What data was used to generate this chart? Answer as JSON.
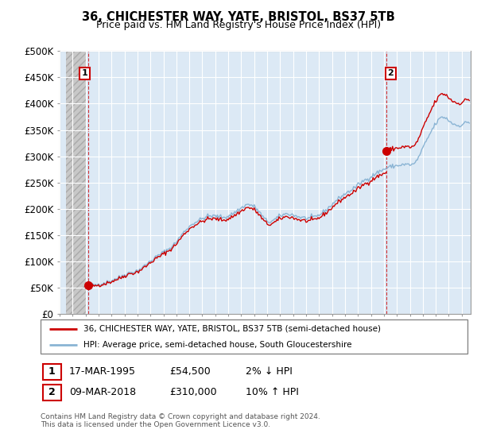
{
  "title": "36, CHICHESTER WAY, YATE, BRISTOL, BS37 5TB",
  "subtitle": "Price paid vs. HM Land Registry's House Price Index (HPI)",
  "ylim": [
    0,
    500000
  ],
  "yticks": [
    0,
    50000,
    100000,
    150000,
    200000,
    250000,
    300000,
    350000,
    400000,
    450000,
    500000
  ],
  "ytick_labels": [
    "£0",
    "£50K",
    "£100K",
    "£150K",
    "£200K",
    "£250K",
    "£300K",
    "£350K",
    "£400K",
    "£450K",
    "£500K"
  ],
  "hpi_color": "#8ab4d4",
  "price_color": "#cc0000",
  "sale1_x": 1995.21,
  "sale1_y": 54500,
  "sale2_x": 2018.21,
  "sale2_y": 310000,
  "legend_line1": "36, CHICHESTER WAY, YATE, BRISTOL, BS37 5TB (semi-detached house)",
  "legend_line2": "HPI: Average price, semi-detached house, South Gloucestershire",
  "table_row1": [
    "1",
    "17-MAR-1995",
    "£54,500",
    "2% ↓ HPI"
  ],
  "table_row2": [
    "2",
    "09-MAR-2018",
    "£310,000",
    "10% ↑ HPI"
  ],
  "footnote": "Contains HM Land Registry data © Crown copyright and database right 2024.\nThis data is licensed under the Open Government Licence v3.0.",
  "chart_bg": "#dce9f5",
  "hatch_bg": "#e8e8e8",
  "grid_color": "#ffffff",
  "box_color": "#cc0000",
  "xlim_left": 1993.5,
  "xlim_right": 2024.7
}
